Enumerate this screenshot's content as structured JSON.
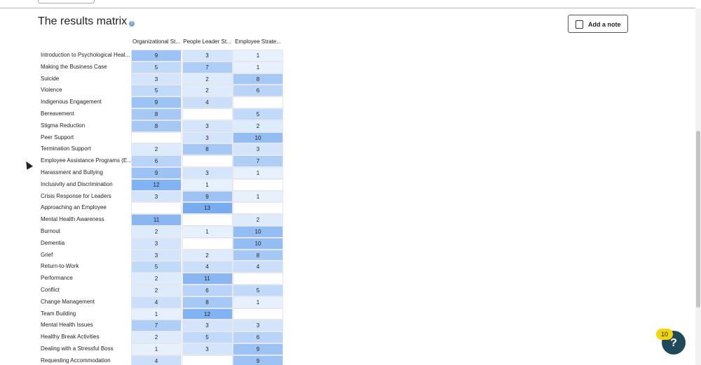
{
  "header": {
    "title": "The results matrix",
    "note_button": "Add a note"
  },
  "table": {
    "columns": [
      "Organizational St...",
      "People Leader St...",
      "Employee Strate..."
    ],
    "rows": [
      {
        "label": "Introduction to Psychological Heal...",
        "values": [
          9,
          3,
          1
        ]
      },
      {
        "label": "Making the Business Case",
        "values": [
          5,
          7,
          1
        ]
      },
      {
        "label": "Suicide",
        "values": [
          3,
          2,
          8
        ]
      },
      {
        "label": "Violence",
        "values": [
          5,
          2,
          6
        ]
      },
      {
        "label": "Indigenous Engagement",
        "values": [
          9,
          4,
          null
        ]
      },
      {
        "label": "Bereavement",
        "values": [
          8,
          null,
          5
        ]
      },
      {
        "label": "Stigma Reduction",
        "values": [
          8,
          3,
          2
        ]
      },
      {
        "label": "Peer Support",
        "values": [
          null,
          3,
          10
        ]
      },
      {
        "label": "Termination Support",
        "values": [
          2,
          8,
          3
        ]
      },
      {
        "label": "Employee Assistance Programs (E...",
        "values": [
          6,
          null,
          7
        ]
      },
      {
        "label": "Harassment and Bullying",
        "values": [
          9,
          3,
          1
        ]
      },
      {
        "label": "Inclusivity and Discrimination",
        "values": [
          12,
          1,
          null
        ]
      },
      {
        "label": "Crisis Response for Leaders",
        "values": [
          3,
          9,
          1
        ]
      },
      {
        "label": "Approaching an Employee",
        "values": [
          null,
          13,
          null
        ]
      },
      {
        "label": "Mental Health Awareness",
        "values": [
          11,
          null,
          2
        ]
      },
      {
        "label": "Burnout",
        "values": [
          2,
          1,
          10
        ]
      },
      {
        "label": "Dementia",
        "values": [
          3,
          null,
          10
        ]
      },
      {
        "label": "Grief",
        "values": [
          3,
          2,
          8
        ]
      },
      {
        "label": "Return-to-Work",
        "values": [
          5,
          4,
          4
        ]
      },
      {
        "label": "Performance",
        "values": [
          2,
          11,
          null
        ]
      },
      {
        "label": "Conflict",
        "values": [
          2,
          6,
          5
        ]
      },
      {
        "label": "Change Management",
        "values": [
          4,
          8,
          1
        ]
      },
      {
        "label": "Team Building",
        "values": [
          1,
          12,
          null
        ]
      },
      {
        "label": "Mental Health Issues",
        "values": [
          7,
          3,
          3
        ]
      },
      {
        "label": "Healthy Break Activities",
        "values": [
          2,
          5,
          6
        ]
      },
      {
        "label": "Dealing with a Stressful Boss",
        "values": [
          1,
          3,
          9
        ]
      },
      {
        "label": "Requesting Accommodation",
        "values": [
          4,
          null,
          9
        ]
      }
    ]
  },
  "help": {
    "badge": "10",
    "label": "?"
  }
}
